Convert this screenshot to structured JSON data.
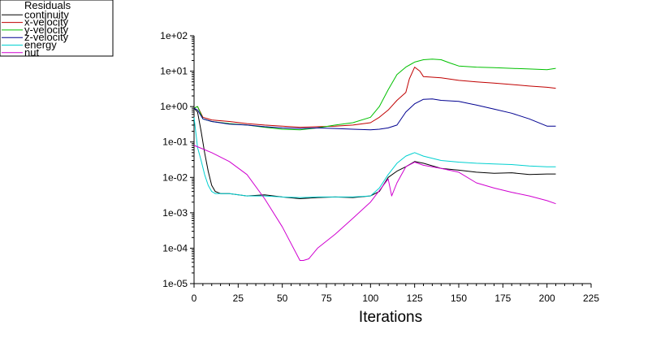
{
  "chart_data": {
    "type": "line",
    "title": "",
    "xlabel": "Iterations",
    "ylabel": "",
    "xlim": [
      0,
      225
    ],
    "ylim": [
      1e-05,
      100
    ],
    "y_scale": "log",
    "grid": false,
    "legend_placement": "top-left",
    "legend_title": "Residuals",
    "x_ticks": [
      "0",
      "25",
      "50",
      "75",
      "100",
      "125",
      "150",
      "175",
      "200",
      "225"
    ],
    "y_ticks": [
      "1e-05",
      "1e-04",
      "1e-03",
      "1e-02",
      "1e-01",
      "1e+00",
      "1e+01",
      "1e+02"
    ],
    "series": [
      {
        "name": "continuity",
        "color": "#000000",
        "x": [
          0,
          2,
          4,
          6,
          8,
          10,
          12,
          15,
          20,
          30,
          40,
          50,
          60,
          70,
          80,
          90,
          100,
          105,
          110,
          115,
          120,
          125,
          130,
          140,
          150,
          160,
          170,
          180,
          190,
          200,
          205
        ],
        "y": [
          0.9,
          0.7,
          0.2,
          0.05,
          0.015,
          0.006,
          0.004,
          0.0035,
          0.0035,
          0.003,
          0.0032,
          0.0028,
          0.0025,
          0.0027,
          0.0028,
          0.0027,
          0.003,
          0.004,
          0.01,
          0.015,
          0.02,
          0.028,
          0.025,
          0.018,
          0.016,
          0.014,
          0.013,
          0.0135,
          0.012,
          0.0125,
          0.0125
        ]
      },
      {
        "name": "x-velocity",
        "color": "#c00000",
        "x": [
          0,
          2,
          5,
          10,
          20,
          30,
          40,
          50,
          60,
          70,
          80,
          90,
          100,
          105,
          110,
          115,
          120,
          122,
          125,
          128,
          130,
          140,
          150,
          160,
          170,
          180,
          190,
          200,
          205
        ],
        "y": [
          0.9,
          1.0,
          0.5,
          0.42,
          0.38,
          0.33,
          0.3,
          0.28,
          0.26,
          0.27,
          0.28,
          0.3,
          0.35,
          0.5,
          0.8,
          1.5,
          2.5,
          6,
          13,
          10,
          7,
          6.5,
          5.5,
          5,
          4.6,
          4.2,
          3.8,
          3.5,
          3.3
        ]
      },
      {
        "name": "y-velocity",
        "color": "#00c000",
        "x": [
          0,
          2,
          5,
          10,
          20,
          30,
          40,
          50,
          60,
          70,
          80,
          90,
          100,
          105,
          110,
          115,
          120,
          125,
          130,
          135,
          140,
          145,
          150,
          160,
          170,
          180,
          190,
          200,
          205
        ],
        "y": [
          0.9,
          1.0,
          0.45,
          0.38,
          0.33,
          0.3,
          0.26,
          0.23,
          0.22,
          0.25,
          0.3,
          0.35,
          0.5,
          1.0,
          3,
          8,
          13,
          18,
          21,
          22,
          21,
          17,
          14,
          13,
          12.5,
          12,
          11.5,
          11,
          12
        ]
      },
      {
        "name": "z-velocity",
        "color": "#000090",
        "x": [
          0,
          2,
          5,
          10,
          20,
          30,
          40,
          50,
          60,
          70,
          80,
          90,
          100,
          105,
          110,
          115,
          120,
          125,
          130,
          135,
          140,
          150,
          160,
          170,
          180,
          190,
          200,
          205
        ],
        "y": [
          0.9,
          0.8,
          0.45,
          0.38,
          0.32,
          0.3,
          0.27,
          0.25,
          0.24,
          0.25,
          0.24,
          0.23,
          0.22,
          0.23,
          0.25,
          0.3,
          0.7,
          1.2,
          1.6,
          1.65,
          1.5,
          1.4,
          1.1,
          0.85,
          0.65,
          0.45,
          0.28,
          0.28
        ]
      },
      {
        "name": "energy",
        "color": "#00d0d0",
        "x": [
          0,
          2,
          4,
          6,
          8,
          10,
          12,
          15,
          20,
          30,
          40,
          50,
          60,
          70,
          80,
          90,
          100,
          105,
          110,
          115,
          120,
          125,
          130,
          140,
          150,
          160,
          170,
          180,
          190,
          200,
          205
        ],
        "y": [
          0.5,
          0.07,
          0.03,
          0.012,
          0.006,
          0.004,
          0.0035,
          0.0035,
          0.0035,
          0.003,
          0.003,
          0.0028,
          0.0027,
          0.0028,
          0.0028,
          0.0028,
          0.003,
          0.005,
          0.012,
          0.025,
          0.04,
          0.05,
          0.04,
          0.03,
          0.027,
          0.025,
          0.024,
          0.023,
          0.021,
          0.02,
          0.02
        ]
      },
      {
        "name": "nut",
        "color": "#d000d0",
        "x": [
          0,
          10,
          20,
          30,
          40,
          50,
          60,
          62,
          65,
          70,
          80,
          90,
          100,
          110,
          112,
          115,
          120,
          125,
          130,
          140,
          150,
          160,
          170,
          180,
          190,
          200,
          205
        ],
        "y": [
          0.08,
          0.05,
          0.028,
          0.012,
          0.0025,
          0.0004,
          4.5e-05,
          4.5e-05,
          5e-05,
          0.0001,
          0.00025,
          0.0007,
          0.002,
          0.009,
          0.003,
          0.007,
          0.02,
          0.027,
          0.022,
          0.018,
          0.014,
          0.007,
          0.005,
          0.0038,
          0.003,
          0.0022,
          0.0018
        ]
      }
    ]
  }
}
